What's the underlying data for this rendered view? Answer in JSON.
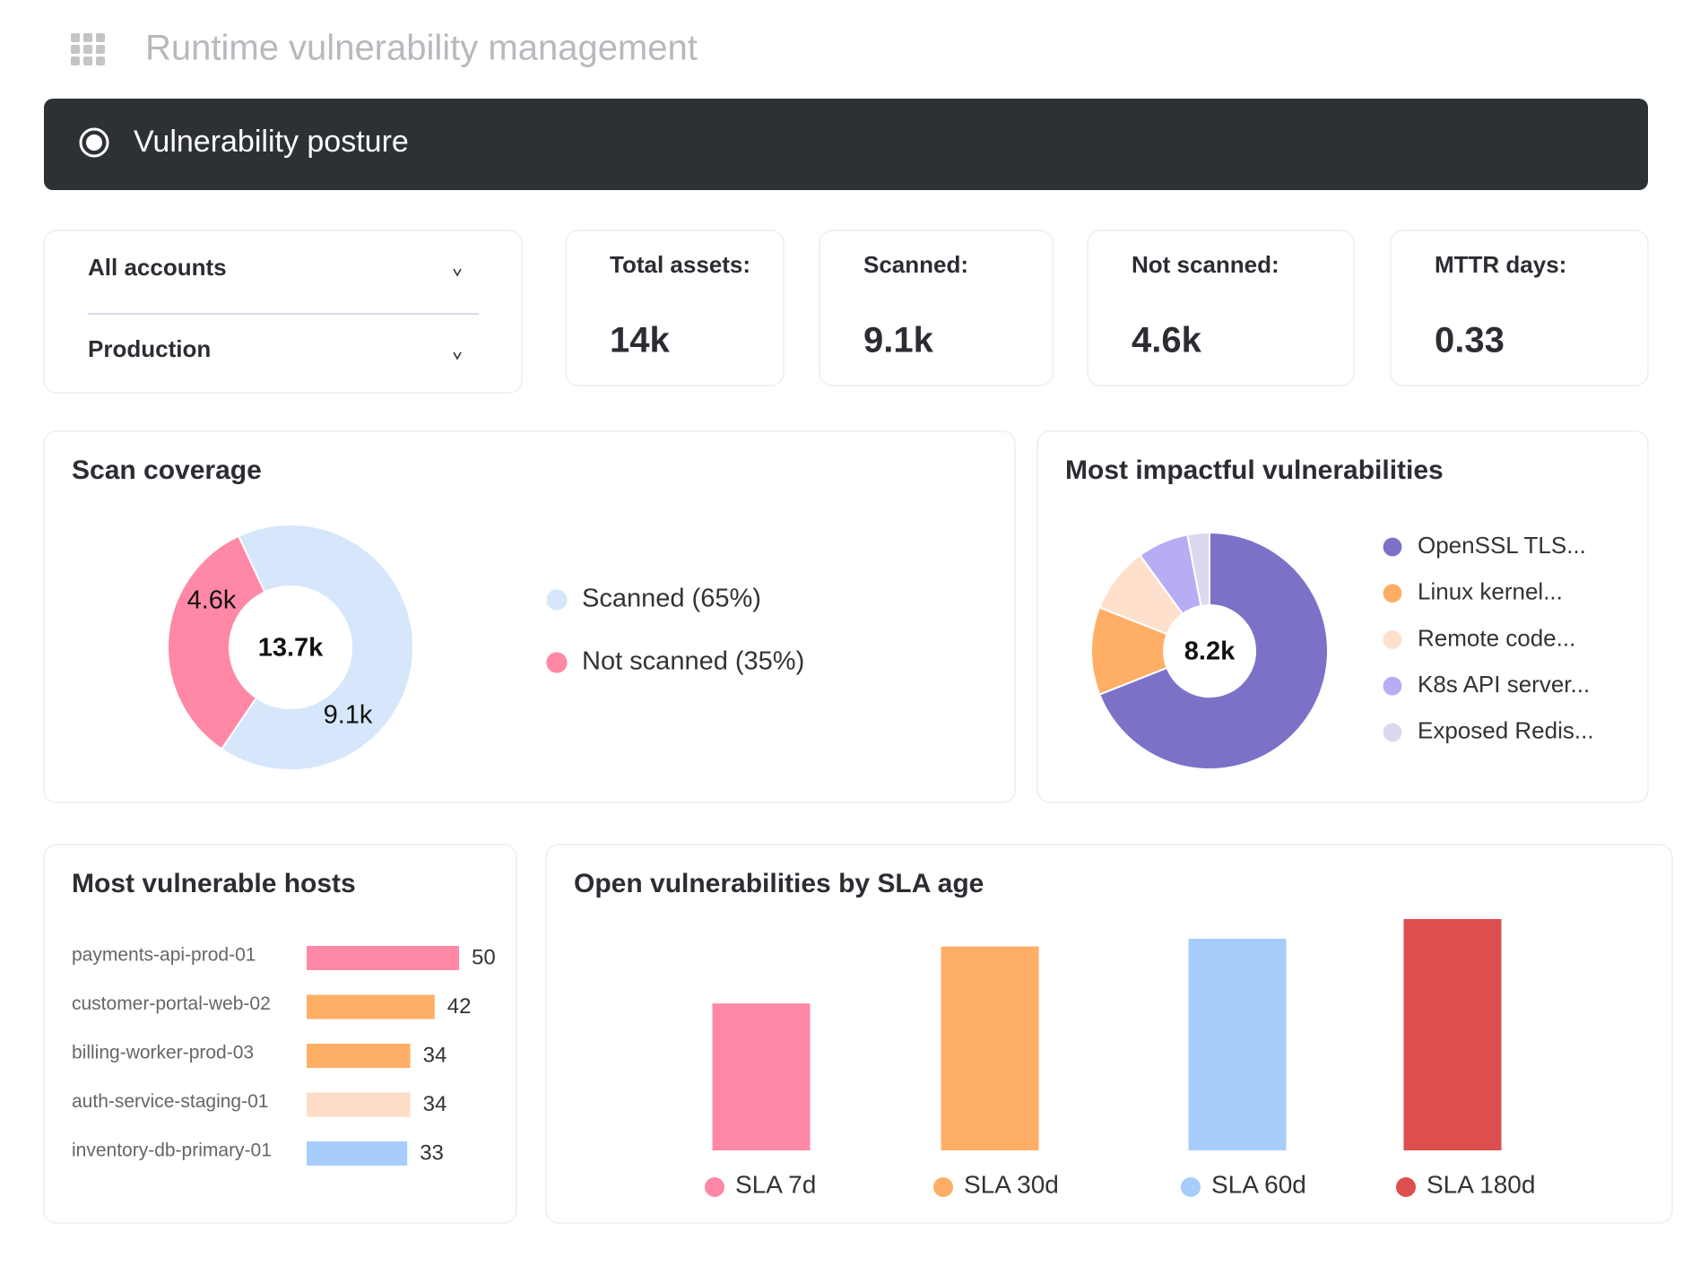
{
  "header": {
    "title": "Runtime vulnerability management"
  },
  "banner": {
    "title": "Vulnerability posture"
  },
  "filters": [
    {
      "label": "All accounts"
    },
    {
      "label": "Production"
    }
  ],
  "kpis": [
    {
      "label": "Total assets:",
      "value": "14k"
    },
    {
      "label": "Scanned:",
      "value": "9.1k"
    },
    {
      "label": "Not scanned:",
      "value": "4.6k"
    },
    {
      "label": "MTTR days:",
      "value": "0.33"
    }
  ],
  "chart_data": [
    {
      "type": "donut",
      "title": "Scan coverage",
      "center_label": "13.7k",
      "categories": [
        "Scanned (65%)",
        "Not scanned (35%)"
      ],
      "values": [
        9100,
        4600
      ],
      "value_labels": [
        "9.1k",
        "4.6k"
      ],
      "colors": [
        "#d6e6fb",
        "#ff88a6"
      ]
    },
    {
      "type": "donut",
      "title": "Most impactful vulnerabilities",
      "center_label": "8.2k",
      "categories": [
        "OpenSSL TLS...",
        "Linux kernel...",
        "Remote code...",
        "K8s API server...",
        "Exposed Redis..."
      ],
      "values": [
        69,
        12,
        9,
        7,
        3
      ],
      "colors": [
        "#7b72c8",
        "#ffae66",
        "#ffe0cc",
        "#b7adf5",
        "#dcd8ef"
      ]
    },
    {
      "type": "barh",
      "title": "Most vulnerable hosts",
      "categories": [
        "payments-api-prod-01",
        "customer-portal-web-02",
        "billing-worker-prod-03",
        "auth-service-staging-01",
        "inventory-db-primary-01"
      ],
      "values": [
        50,
        42,
        34,
        34,
        33
      ],
      "colors": [
        "#ff88a6",
        "#ffae66",
        "#ffae66",
        "#ffdcc8",
        "#a6cdfb"
      ],
      "xlim": [
        0,
        50
      ]
    },
    {
      "type": "bar",
      "title": "Open vulnerabilities by SLA age",
      "categories": [
        "SLA 7d",
        "SLA 30d",
        "SLA 60d",
        "SLA 180d"
      ],
      "values": [
        134,
        186,
        193,
        211
      ],
      "colors": [
        "#ff88a6",
        "#ffae66",
        "#a6cdfb",
        "#dd4f4f"
      ],
      "ylim": [
        0,
        220
      ]
    }
  ]
}
